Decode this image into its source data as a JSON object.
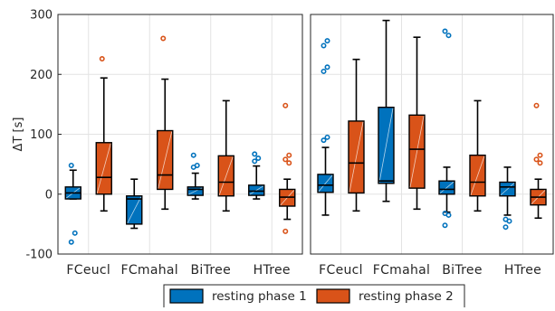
{
  "chart_data": [
    {
      "type": "box",
      "ylabel": "ΔT [s]",
      "ylim": [
        -100,
        300
      ],
      "yticks": [
        -100,
        0,
        100,
        200,
        300
      ],
      "grid": true,
      "categories": [
        "FCeucl",
        "FCmahal",
        "BiTree",
        "HTree"
      ],
      "series": [
        {
          "name": "resting phase 1",
          "color": "#0072bd",
          "boxes": [
            {
              "category": "FCeucl",
              "whisker_low": -8,
              "q1": -8,
              "median": 2,
              "q3": 12,
              "whisker_high": 40,
              "outliers": [
                48,
                -65,
                -80
              ]
            },
            {
              "category": "FCmahal",
              "whisker_low": -57,
              "q1": -50,
              "median": -8,
              "q3": -3,
              "whisker_high": 25,
              "outliers": []
            },
            {
              "category": "BiTree",
              "whisker_low": -8,
              "q1": -2,
              "median": 8,
              "q3": 12,
              "whisker_high": 35,
              "outliers": [
                45,
                48,
                65
              ]
            },
            {
              "category": "HTree",
              "whisker_low": -8,
              "q1": -2,
              "median": 5,
              "q3": 15,
              "whisker_high": 47,
              "outliers": [
                55,
                60,
                67
              ]
            }
          ]
        },
        {
          "name": "resting phase 2",
          "color": "#d95319",
          "boxes": [
            {
              "category": "FCeucl",
              "whisker_low": -28,
              "q1": 0,
              "median": 28,
              "q3": 86,
              "whisker_high": 194,
              "outliers": [
                226
              ]
            },
            {
              "category": "FCmahal",
              "whisker_low": -25,
              "q1": 8,
              "median": 32,
              "q3": 106,
              "whisker_high": 192,
              "outliers": [
                260
              ]
            },
            {
              "category": "BiTree",
              "whisker_low": -28,
              "q1": -3,
              "median": 20,
              "q3": 64,
              "whisker_high": 156,
              "outliers": []
            },
            {
              "category": "HTree",
              "whisker_low": -42,
              "q1": -20,
              "median": -5,
              "q3": 8,
              "whisker_high": 25,
              "outliers": [
                148,
                52,
                58,
                65,
                -62
              ]
            }
          ]
        }
      ]
    },
    {
      "type": "box",
      "ylabel": "",
      "ylim": [
        -100,
        300
      ],
      "grid": true,
      "categories": [
        "FCeucl",
        "FCmahal",
        "BiTree",
        "HTree"
      ],
      "series": [
        {
          "name": "resting phase 1",
          "color": "#0072bd",
          "boxes": [
            {
              "category": "FCeucl",
              "whisker_low": -35,
              "q1": 3,
              "median": 15,
              "q3": 33,
              "whisker_high": 78,
              "outliers": [
                90,
                95,
                205,
                212,
                248,
                256
              ]
            },
            {
              "category": "FCmahal",
              "whisker_low": -12,
              "q1": 18,
              "median": 22,
              "q3": 145,
              "whisker_high": 290,
              "outliers": []
            },
            {
              "category": "BiTree",
              "whisker_low": -30,
              "q1": 0,
              "median": 8,
              "q3": 22,
              "whisker_high": 45,
              "outliers": [
                -32,
                -35,
                -52,
                265,
                272
              ]
            },
            {
              "category": "HTree",
              "whisker_low": -35,
              "q1": -3,
              "median": 12,
              "q3": 20,
              "whisker_high": 45,
              "outliers": [
                -42,
                -45,
                -55
              ]
            }
          ]
        },
        {
          "name": "resting phase 2",
          "color": "#d95319",
          "boxes": [
            {
              "category": "FCeucl",
              "whisker_low": -28,
              "q1": 2,
              "median": 52,
              "q3": 122,
              "whisker_high": 225,
              "outliers": []
            },
            {
              "category": "FCmahal",
              "whisker_low": -25,
              "q1": 10,
              "median": 75,
              "q3": 132,
              "whisker_high": 262,
              "outliers": []
            },
            {
              "category": "BiTree",
              "whisker_low": -28,
              "q1": -3,
              "median": 20,
              "q3": 65,
              "whisker_high": 156,
              "outliers": []
            },
            {
              "category": "HTree",
              "whisker_low": -40,
              "q1": -18,
              "median": -5,
              "q3": 8,
              "whisker_high": 25,
              "outliers": [
                148,
                52,
                58,
                65
              ]
            }
          ]
        }
      ]
    }
  ],
  "legend": {
    "placement": "bottom",
    "items": [
      {
        "label": "resting phase 1",
        "color": "#0072bd"
      },
      {
        "label": "resting phase 2",
        "color": "#d95319"
      }
    ]
  }
}
